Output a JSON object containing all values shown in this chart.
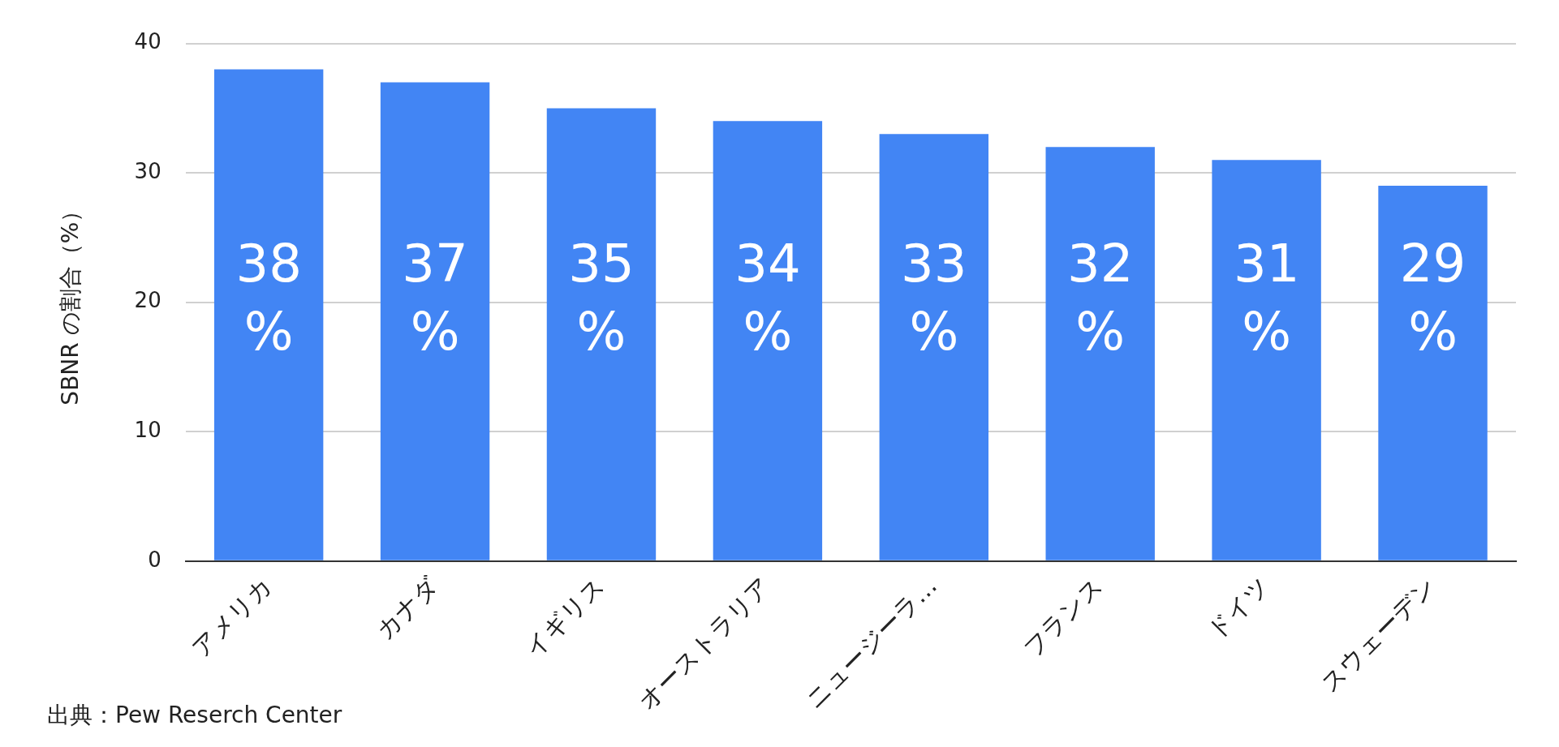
{
  "chart_data": {
    "type": "bar",
    "ylabel": "SBNR の割合（%）",
    "categories": [
      "アメリカ",
      "カナダ",
      "イギリス",
      "オーストラリア",
      "ニュージーラ…",
      "フランス",
      "ドイツ",
      "スウェーデン"
    ],
    "values": [
      38,
      37,
      35,
      34,
      33,
      32,
      31,
      29
    ],
    "value_labels": [
      "38%",
      "37%",
      "35%",
      "34%",
      "33%",
      "32%",
      "31%",
      "29%"
    ],
    "color": "#4285f4",
    "ylim": [
      0,
      40
    ],
    "yticks": [
      0,
      10,
      20,
      30,
      40
    ],
    "grid": "y",
    "legend": false,
    "annotations": [
      "出典：Pew Reserch Center"
    ]
  }
}
